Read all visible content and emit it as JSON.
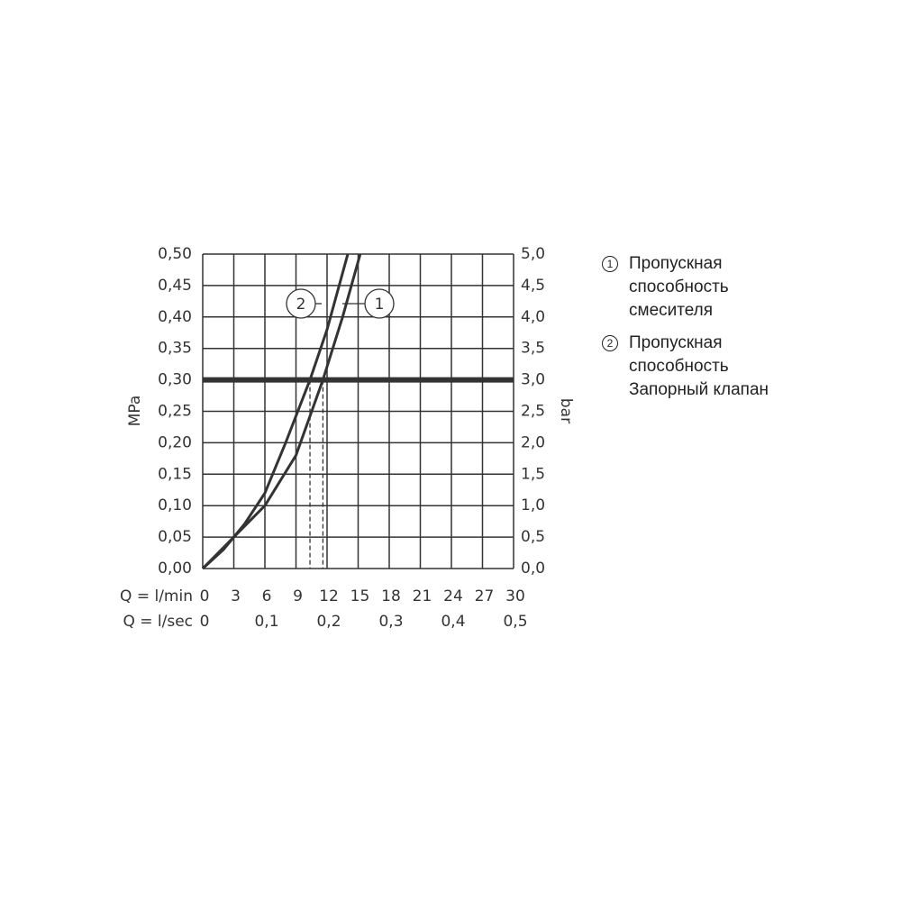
{
  "chart_data": {
    "type": "line",
    "xlabel": "Q = l/min",
    "x2label": "Q = l/sec",
    "ylabel": "MPa",
    "y2label": "bar",
    "xlim": [
      0,
      30
    ],
    "xticks": [
      0,
      3,
      6,
      9,
      12,
      15,
      18,
      21,
      24,
      27,
      30
    ],
    "x2lim": [
      0,
      0.5
    ],
    "x2ticks": [
      0,
      {
        "value": 0.1,
        "label": "0,1"
      },
      {
        "value": 0.2,
        "label": "0,2"
      },
      {
        "value": 0.3,
        "label": "0,3"
      },
      {
        "value": 0.4,
        "label": "0,4"
      },
      {
        "value": 0.5,
        "label": "0,5"
      }
    ],
    "ylim": [
      0,
      0.5
    ],
    "yticks": [
      {
        "value": 0,
        "label": "0,00"
      },
      {
        "value": 0.05,
        "label": "0,05"
      },
      {
        "value": 0.1,
        "label": "0,10"
      },
      {
        "value": 0.15,
        "label": "0,15"
      },
      {
        "value": 0.2,
        "label": "0,20"
      },
      {
        "value": 0.25,
        "label": "0,25"
      },
      {
        "value": 0.3,
        "label": "0,30"
      },
      {
        "value": 0.35,
        "label": "0,35"
      },
      {
        "value": 0.4,
        "label": "0,40"
      },
      {
        "value": 0.45,
        "label": "0,45"
      },
      {
        "value": 0.5,
        "label": "0,50"
      }
    ],
    "y2lim": [
      0,
      5
    ],
    "y2ticks": [
      {
        "value": 0,
        "label": "0,0"
      },
      {
        "value": 0.5,
        "label": "0,5"
      },
      {
        "value": 1,
        "label": "1,0"
      },
      {
        "value": 1.5,
        "label": "1,5"
      },
      {
        "value": 2,
        "label": "2,0"
      },
      {
        "value": 2.5,
        "label": "2,5"
      },
      {
        "value": 3,
        "label": "3,0"
      },
      {
        "value": 3.5,
        "label": "3,5"
      },
      {
        "value": 4,
        "label": "4,0"
      },
      {
        "value": 4.5,
        "label": "4,5"
      },
      {
        "value": 5,
        "label": "5,0"
      }
    ],
    "grid": true,
    "reference_y": 0.3,
    "reference_x": [
      10.35,
      11.6
    ],
    "series": [
      {
        "name": "Пропускная способность смесителя",
        "marker": "1",
        "color": "#333333",
        "x": [
          0,
          3,
          6,
          9,
          11.6,
          13.5,
          15.2
        ],
        "values": [
          0,
          0.05,
          0.1,
          0.18,
          0.3,
          0.4,
          0.5
        ]
      },
      {
        "name": "Пропускная способность Запорный клапан",
        "marker": "2",
        "color": "#333333",
        "x": [
          0,
          2,
          4,
          6,
          8,
          10.35,
          12,
          14
        ],
        "values": [
          0,
          0.03,
          0.07,
          0.12,
          0.2,
          0.3,
          0.38,
          0.5
        ]
      }
    ]
  }
}
